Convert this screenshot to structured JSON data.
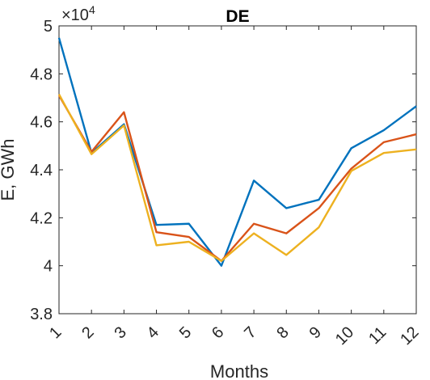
{
  "chart_data": {
    "type": "line",
    "title": "DE",
    "xlabel": "Months",
    "ylabel": "E, GWh",
    "exponent_label": {
      "base": "×10",
      "power": "4"
    },
    "x": [
      1,
      2,
      3,
      4,
      5,
      6,
      7,
      8,
      9,
      10,
      11,
      12
    ],
    "x_tick_labels": [
      "1",
      "2",
      "3",
      "4",
      "5",
      "6",
      "7",
      "8",
      "9",
      "10",
      "11",
      "12"
    ],
    "xlim": [
      1,
      12
    ],
    "ylim": [
      3.8,
      5.0
    ],
    "y_tick_values": [
      3.8,
      4.0,
      4.2,
      4.4,
      4.6,
      4.8,
      5.0
    ],
    "y_tick_labels": [
      "3.8",
      "4",
      "4.2",
      "4.4",
      "4.6",
      "4.8",
      "5"
    ],
    "grid": false,
    "series": [
      {
        "color": "#0072BD",
        "values": [
          4.95,
          4.47,
          4.59,
          4.17,
          4.175,
          4.0,
          4.355,
          4.24,
          4.275,
          4.49,
          4.565,
          4.665
        ]
      },
      {
        "color": "#D95319",
        "values": [
          4.71,
          4.475,
          4.64,
          4.14,
          4.12,
          4.02,
          4.175,
          4.135,
          4.24,
          4.405,
          4.515,
          4.548
        ]
      },
      {
        "color": "#EDB120",
        "values": [
          4.715,
          4.465,
          4.585,
          4.085,
          4.1,
          4.02,
          4.135,
          4.045,
          4.16,
          4.395,
          4.47,
          4.485
        ]
      }
    ]
  }
}
